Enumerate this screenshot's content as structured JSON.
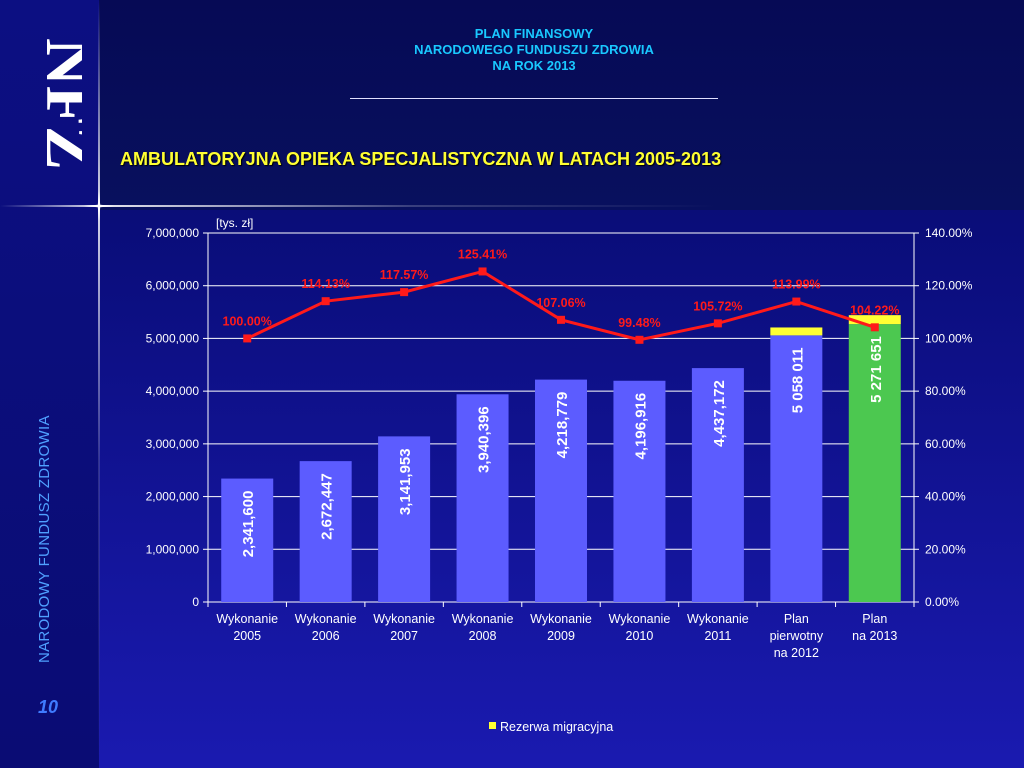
{
  "header": {
    "line1": "PLAN FINANSOWY",
    "line2": "NARODOWEGO FUNDUSZU ZDROWIA",
    "line3": "NA ROK 2013"
  },
  "logo_text": "NFZ",
  "side_label": "NARODOWY FUNDUSZ ZDROWIA",
  "page_number": "10",
  "chart_data": {
    "type": "bar",
    "title": "AMBULATORYJNA OPIEKA SPECJALISTYCZNA W LATACH 2005-2013",
    "unit_label": "[tys. zł]",
    "categories": [
      [
        "Wykonanie",
        "2005"
      ],
      [
        "Wykonanie",
        "2006"
      ],
      [
        "Wykonanie",
        "2007"
      ],
      [
        "Wykonanie",
        "2008"
      ],
      [
        "Wykonanie",
        "2009"
      ],
      [
        "Wykonanie",
        "2010"
      ],
      [
        "Wykonanie",
        "2011"
      ],
      [
        "Plan",
        "pierwotny",
        "na 2012"
      ],
      [
        "Plan",
        "na 2013"
      ]
    ],
    "values": [
      2341600,
      2672447,
      3141953,
      3940396,
      4218779,
      4196916,
      4437172,
      5058011,
      5271651
    ],
    "value_labels": [
      "2,341,600",
      "2,672,447",
      "3,141,953",
      "3,940,396",
      "4,218,779",
      "4,196,916",
      "4,437,172",
      "5 058 011",
      "5 271 651"
    ],
    "reserve_series": {
      "name": "Rezerwa migracyjna",
      "values": [
        null,
        null,
        null,
        null,
        null,
        null,
        null,
        150000,
        170000
      ],
      "color": "#ffff33"
    },
    "bar_colors": [
      "#5c5cff",
      "#5c5cff",
      "#5c5cff",
      "#5c5cff",
      "#5c5cff",
      "#5c5cff",
      "#5c5cff",
      "#5c5cff",
      "#4cc850"
    ],
    "line_series": {
      "values": [
        100.0,
        114.13,
        117.57,
        125.41,
        107.06,
        99.48,
        105.72,
        113.99,
        104.22
      ],
      "labels": [
        "100.00%",
        "114.13%",
        "117.57%",
        "125.41%",
        "107.06%",
        "99.48%",
        "105.72%",
        "113.99%",
        "104.22%"
      ],
      "color": "#ff1a1a"
    },
    "y_left": {
      "min": 0,
      "max": 7000000,
      "ticks": [
        "0",
        "1,000,000",
        "2,000,000",
        "3,000,000",
        "4,000,000",
        "5,000,000",
        "6,000,000",
        "7,000,000"
      ]
    },
    "y_right": {
      "min": 0,
      "max": 140,
      "ticks": [
        "0.00%",
        "20.00%",
        "40.00%",
        "60.00%",
        "80.00%",
        "100.00%",
        "120.00%",
        "140.00%"
      ]
    },
    "grid": true,
    "legend_position": "bottom"
  }
}
